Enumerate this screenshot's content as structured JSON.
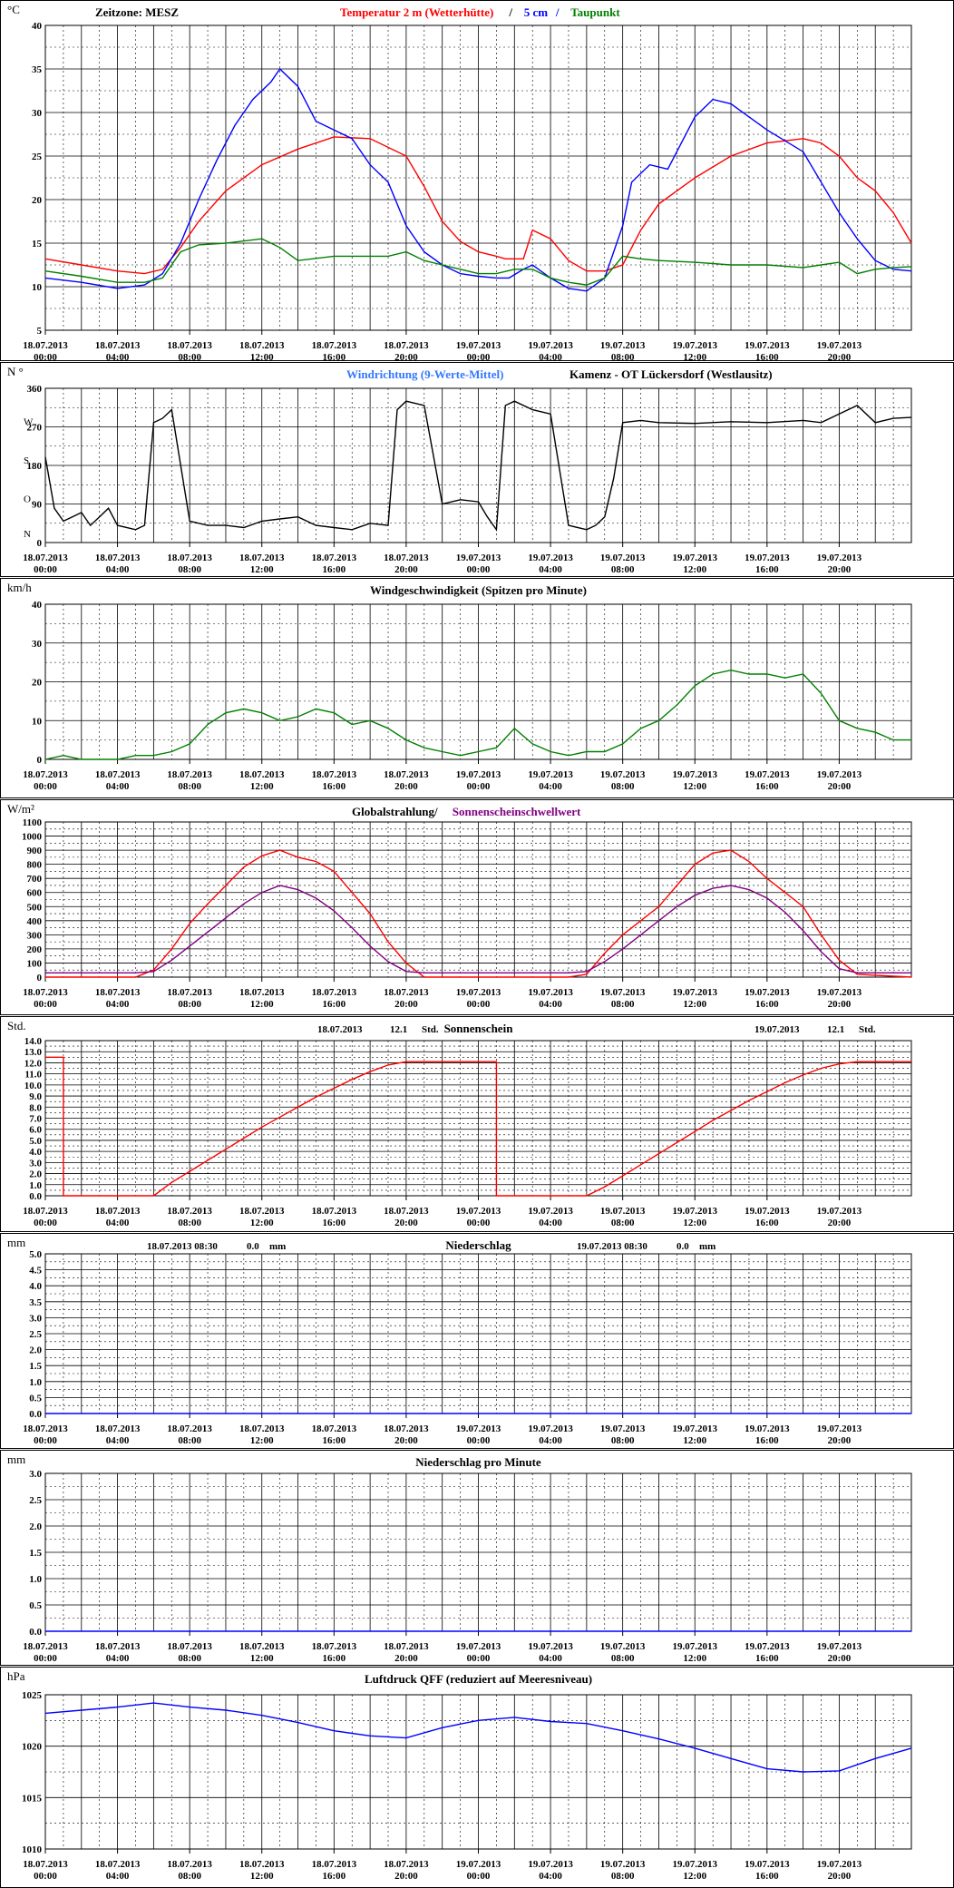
{
  "colors": {
    "red": "#ff0000",
    "blue": "#0000ff",
    "lightblue": "#3377ff",
    "green": "#008000",
    "black": "#000000",
    "purple": "#800080",
    "grid": "#000000"
  },
  "x_ticks": [
    [
      "18.07.2013",
      "00:00"
    ],
    [
      "18.07.2013",
      "04:00"
    ],
    [
      "18.07.2013",
      "08:00"
    ],
    [
      "18.07.2013",
      "12:00"
    ],
    [
      "18.07.2013",
      "16:00"
    ],
    [
      "18.07.2013",
      "20:00"
    ],
    [
      "19.07.2013",
      "00:00"
    ],
    [
      "19.07.2013",
      "04:00"
    ],
    [
      "19.07.2013",
      "08:00"
    ],
    [
      "19.07.2013",
      "12:00"
    ],
    [
      "19.07.2013",
      "16:00"
    ],
    [
      "19.07.2013",
      "20:00"
    ]
  ],
  "chart_data": [
    {
      "type": "line",
      "unit": "°C",
      "header_prefix": "Zeitzone: MESZ",
      "title_parts": [
        {
          "text": "Temperatur 2 m (Wetterhütte)",
          "color": "red"
        },
        {
          "text": "/",
          "color": "black"
        },
        {
          "text": "5 cm",
          "color": "blue"
        },
        {
          "text": "/",
          "color": "blue"
        },
        {
          "text": "Taupunkt",
          "color": "green"
        }
      ],
      "ylim": [
        5,
        40
      ],
      "yticks": [
        "5",
        "10",
        "15",
        "20",
        "25",
        "30",
        "35",
        "40"
      ],
      "series": [
        {
          "color": "red",
          "x": [
            0,
            2,
            4,
            5.5,
            6.5,
            7.5,
            8.5,
            10,
            12,
            14,
            16,
            18,
            20,
            21,
            22,
            23,
            24,
            25,
            25.5,
            26.5,
            27,
            28,
            29,
            30,
            31,
            32,
            33,
            34,
            36,
            38,
            40,
            42,
            43,
            44,
            45,
            46,
            47,
            48
          ],
          "y": [
            13.2,
            12.5,
            11.8,
            11.5,
            12.0,
            14.5,
            17.5,
            21.0,
            24.0,
            25.8,
            27.2,
            27.0,
            25.0,
            21.5,
            17.5,
            15.2,
            14.0,
            13.5,
            13.2,
            13.2,
            16.5,
            15.5,
            13.0,
            11.8,
            11.8,
            12.5,
            16.5,
            19.5,
            22.5,
            25.0,
            26.5,
            27.0,
            26.5,
            25.0,
            22.5,
            21.0,
            18.5,
            15.0
          ]
        },
        {
          "color": "blue",
          "x": [
            0,
            2,
            4,
            5.5,
            6.5,
            7.5,
            8.5,
            9.5,
            10.5,
            11.5,
            12.5,
            13,
            14,
            15,
            16,
            17,
            18,
            19,
            20,
            21,
            22,
            23,
            24,
            25,
            25.7,
            26.5,
            27,
            28,
            29,
            30,
            31,
            32,
            32.5,
            33.5,
            34.5,
            36,
            37,
            38,
            40,
            42,
            43,
            44,
            45,
            46,
            47,
            48
          ],
          "y": [
            11.0,
            10.5,
            9.8,
            10.2,
            11.5,
            15.0,
            20.0,
            24.5,
            28.5,
            31.5,
            33.5,
            35.0,
            33.0,
            29.0,
            28.0,
            27.0,
            24.0,
            22.0,
            17.0,
            14.0,
            12.5,
            11.5,
            11.2,
            11.0,
            11.0,
            12.0,
            12.5,
            11.0,
            9.8,
            9.5,
            11.0,
            17.0,
            22.0,
            24.0,
            23.5,
            29.5,
            31.5,
            31.0,
            28.0,
            25.5,
            22.0,
            18.5,
            15.5,
            13.0,
            12.0,
            11.8
          ]
        },
        {
          "color": "green",
          "x": [
            0,
            2,
            4,
            5.5,
            6.5,
            7.5,
            8.5,
            10,
            12,
            13,
            14,
            16,
            18,
            19,
            20,
            21,
            22,
            23,
            24,
            25,
            26,
            27,
            28,
            29,
            30,
            31,
            32,
            33,
            34,
            36,
            38,
            40,
            42,
            43,
            44,
            45,
            46,
            47,
            48
          ],
          "y": [
            11.8,
            11.2,
            10.5,
            10.5,
            11.0,
            14.0,
            14.8,
            15.0,
            15.5,
            14.5,
            13.0,
            13.5,
            13.5,
            13.5,
            14.0,
            13.0,
            12.5,
            12.0,
            11.5,
            11.5,
            12.0,
            12.0,
            11.0,
            10.5,
            10.2,
            11.0,
            13.5,
            13.2,
            13.0,
            12.8,
            12.5,
            12.5,
            12.2,
            12.5,
            12.8,
            11.5,
            12.0,
            12.2,
            12.3
          ]
        }
      ]
    },
    {
      "type": "line",
      "unit": "N °",
      "title_parts": [
        {
          "text": "Windrichtung (9-Werte-Mittel)",
          "color": "lightblue"
        },
        {
          "text": "Kamenz - OT Lückersdorf (Westlausitz)",
          "color": "black"
        }
      ],
      "ylim": [
        0,
        360
      ],
      "yticks": [
        "0",
        "90",
        "180",
        "270",
        "360"
      ],
      "compass_labels": [
        "N",
        "O",
        "S",
        "W"
      ],
      "series": [
        {
          "color": "black",
          "x": [
            0,
            0.5,
            1,
            1.5,
            2,
            2.5,
            3,
            3.5,
            4,
            5,
            5.5,
            6,
            6.5,
            7,
            8,
            9,
            10,
            11,
            12,
            13,
            14,
            15,
            16,
            17,
            18,
            19,
            19.5,
            20,
            21,
            22,
            23,
            24,
            24.5,
            25,
            25.5,
            26,
            27,
            28,
            29,
            30,
            30.5,
            31,
            31.5,
            32,
            33,
            34,
            36,
            38,
            40,
            42,
            43,
            44,
            45,
            46,
            47,
            48
          ],
          "y": [
            200,
            80,
            50,
            60,
            70,
            40,
            60,
            80,
            40,
            30,
            40,
            280,
            290,
            310,
            50,
            40,
            40,
            35,
            50,
            55,
            60,
            40,
            35,
            30,
            45,
            40,
            310,
            330,
            320,
            90,
            100,
            95,
            60,
            30,
            320,
            330,
            310,
            300,
            40,
            30,
            40,
            60,
            150,
            280,
            285,
            280,
            278,
            282,
            280,
            285,
            280,
            300,
            320,
            280,
            290,
            292
          ]
        }
      ]
    },
    {
      "type": "line",
      "unit": "km/h",
      "title": "Windgeschwindigkeit (Spitzen pro Minute)",
      "ylim": [
        0,
        40
      ],
      "yticks": [
        "0",
        "10",
        "20",
        "30",
        "40"
      ],
      "series": [
        {
          "color": "green",
          "x": [
            0,
            1,
            2,
            3,
            4,
            5,
            6,
            7,
            8,
            9,
            10,
            11,
            12,
            13,
            14,
            15,
            16,
            17,
            18,
            19,
            20,
            21,
            22,
            23,
            24,
            25,
            26,
            27,
            28,
            29,
            30,
            31,
            32,
            33,
            34,
            35,
            36,
            37,
            38,
            39,
            40,
            41,
            42,
            43,
            44,
            45,
            46,
            47,
            48
          ],
          "y": [
            0,
            1,
            0,
            0,
            0,
            1,
            1,
            2,
            4,
            9,
            12,
            13,
            12,
            10,
            11,
            13,
            12,
            9,
            10,
            8,
            5,
            3,
            2,
            1,
            2,
            3,
            8,
            4,
            2,
            1,
            2,
            2,
            4,
            8,
            10,
            14,
            19,
            22,
            23,
            22,
            22,
            21,
            22,
            17,
            10,
            8,
            7,
            5,
            5
          ]
        }
      ]
    },
    {
      "type": "line",
      "unit": "W/m²",
      "title_parts": [
        {
          "text": "Globalstrahlung/",
          "color": "black"
        },
        {
          "text": "Sonnenscheinschwellwert",
          "color": "purple"
        }
      ],
      "ylim": [
        0,
        1100
      ],
      "yticks": [
        "0",
        "100",
        "200",
        "300",
        "400",
        "500",
        "600",
        "700",
        "800",
        "900",
        "1000",
        "1100"
      ],
      "series": [
        {
          "color": "red",
          "x": [
            0,
            5,
            6,
            7,
            8,
            9,
            10,
            11,
            12,
            13,
            14,
            15,
            16,
            17,
            18,
            19,
            20,
            21,
            29,
            30,
            31,
            32,
            33,
            34,
            35,
            36,
            37,
            38,
            39,
            40,
            41,
            42,
            43,
            44,
            45,
            48
          ],
          "y": [
            0,
            0,
            50,
            200,
            380,
            520,
            650,
            780,
            860,
            900,
            850,
            820,
            750,
            600,
            450,
            250,
            100,
            0,
            0,
            20,
            170,
            300,
            400,
            500,
            650,
            800,
            880,
            900,
            820,
            700,
            600,
            500,
            300,
            120,
            20,
            0
          ]
        },
        {
          "color": "purple",
          "x": [
            0,
            5,
            6,
            7,
            8,
            9,
            10,
            11,
            12,
            13,
            14,
            15,
            16,
            17,
            18,
            19,
            20,
            21,
            29,
            30,
            31,
            32,
            33,
            34,
            35,
            36,
            37,
            38,
            39,
            40,
            41,
            42,
            43,
            44,
            45,
            48
          ],
          "y": [
            30,
            30,
            40,
            120,
            220,
            320,
            420,
            520,
            600,
            650,
            620,
            560,
            470,
            350,
            220,
            110,
            40,
            30,
            30,
            40,
            110,
            200,
            300,
            400,
            500,
            580,
            630,
            650,
            620,
            560,
            460,
            330,
            180,
            60,
            30,
            30
          ]
        }
      ]
    },
    {
      "type": "line",
      "unit": "Std.",
      "title": "Sonnenschein",
      "summaries": [
        {
          "date": "18.07.2013",
          "value": "12.1",
          "unit": "Std."
        },
        {
          "date": "19.07.2013",
          "value": "12.1",
          "unit": "Std."
        }
      ],
      "ylim": [
        0,
        14
      ],
      "yticks": [
        "0.0",
        "1.0",
        "2.0",
        "3.0",
        "4.0",
        "5.0",
        "6.0",
        "7.0",
        "8.0",
        "9.0",
        "10.0",
        "11.0",
        "12.0",
        "13.0",
        "14.0"
      ],
      "series": [
        {
          "color": "red",
          "x": [
            0,
            1,
            1,
            6,
            7,
            8,
            9,
            10,
            11,
            12,
            13,
            14,
            15,
            16,
            17,
            18,
            19,
            20,
            21,
            25,
            25,
            30,
            31,
            32,
            33,
            34,
            35,
            36,
            37,
            38,
            39,
            40,
            41,
            42,
            43,
            44,
            45,
            48
          ],
          "y": [
            12.5,
            12.5,
            0,
            0,
            1.2,
            2.2,
            3.2,
            4.2,
            5.2,
            6.2,
            7.1,
            8.0,
            8.9,
            9.7,
            10.5,
            11.2,
            11.8,
            12.1,
            12.1,
            12.1,
            0,
            0,
            0.8,
            1.8,
            2.8,
            3.8,
            4.8,
            5.8,
            6.8,
            7.7,
            8.6,
            9.4,
            10.2,
            10.9,
            11.5,
            11.9,
            12.1,
            12.1
          ]
        }
      ]
    },
    {
      "type": "line",
      "unit": "mm",
      "title": "Niederschlag",
      "summaries": [
        {
          "date": "18.07.2013 08:30",
          "value": "0.0",
          "unit": "mm"
        },
        {
          "date": "19.07.2013 08:30",
          "value": "0.0",
          "unit": "mm"
        }
      ],
      "ylim": [
        0,
        5
      ],
      "yticks": [
        "0.0",
        "0.5",
        "1.0",
        "1.5",
        "2.0",
        "2.5",
        "3.0",
        "3.5",
        "4.0",
        "4.5",
        "5.0"
      ],
      "series": [
        {
          "color": "blue",
          "x": [
            0,
            48
          ],
          "y": [
            0,
            0
          ]
        }
      ]
    },
    {
      "type": "line",
      "unit": "mm",
      "title": "Niederschlag pro Minute",
      "ylim": [
        0,
        3
      ],
      "yticks": [
        "0.0",
        "0.5",
        "1.0",
        "1.5",
        "2.0",
        "2.5",
        "3.0"
      ],
      "series": [
        {
          "color": "blue",
          "x": [
            0,
            48
          ],
          "y": [
            0,
            0
          ]
        }
      ]
    },
    {
      "type": "line",
      "unit": "hPa",
      "title": "Luftdruck QFF (reduziert auf Meeresniveau)",
      "ylim": [
        1010,
        1025
      ],
      "yticks": [
        "1010",
        "1015",
        "1020",
        "1025"
      ],
      "series": [
        {
          "color": "blue",
          "x": [
            0,
            2,
            4,
            6,
            8,
            10,
            12,
            14,
            16,
            18,
            20,
            22,
            24,
            26,
            28,
            30,
            32,
            34,
            36,
            38,
            40,
            42,
            44,
            46,
            48
          ],
          "y": [
            1023.2,
            1023.5,
            1023.8,
            1024.2,
            1023.8,
            1023.5,
            1023.0,
            1022.3,
            1021.5,
            1021.0,
            1020.8,
            1021.8,
            1022.5,
            1022.8,
            1022.4,
            1022.2,
            1021.5,
            1020.7,
            1019.8,
            1018.8,
            1017.8,
            1017.5,
            1017.6,
            1018.8,
            1019.8
          ]
        }
      ]
    }
  ]
}
